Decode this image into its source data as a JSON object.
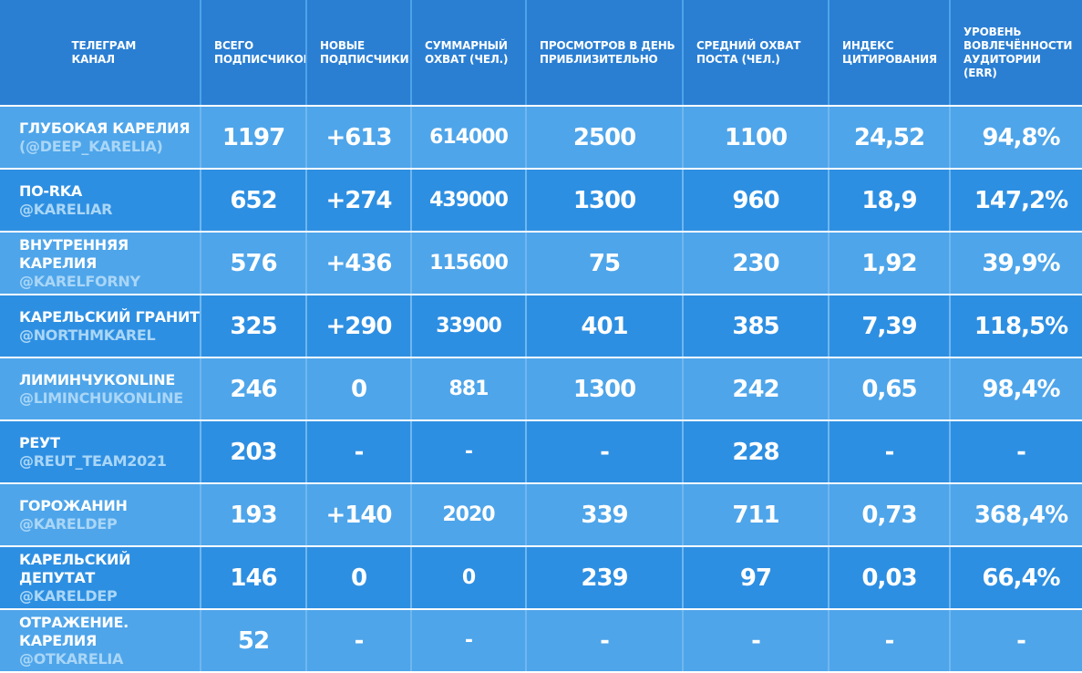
{
  "header": {
    "channel": "ТЕЛЕГРАМ\nКАНАЛ",
    "total_subscribers": "ВСЕГО\nПОДПИСЧИКОВ",
    "new_subscribers": "НОВЫЕ\nПОДПИСЧИКИ",
    "total_reach": "СУММАРНЫЙ\nОХВАТ (ЧЕЛ.)",
    "daily_views": "ПРОСМОТРОВ В ДЕНЬ\nПРИБЛИЗИТЕЛЬНО",
    "avg_post_reach": "СРЕДНИЙ ОХВАТ\nПОСТА (ЧЕЛ.)",
    "citation_index": "ИНДЕКС\nЦИТИРОВАНИЯ",
    "err": "УРОВЕНЬ\nВОВЛЕЧЁННОСТИ\nАУДИТОРИИ\n(ERR)"
  },
  "rows": [
    {
      "title": "ГЛУБОКАЯ КАРЕЛИЯ",
      "handle": "(@DEEP_KARELIA)",
      "total": "1197",
      "new": "+613",
      "reach": "614000",
      "views": "2500",
      "avg": "1100",
      "index": "24,52",
      "err": "94,8%"
    },
    {
      "title": "ПО-RKA",
      "handle": "@KARELIAR",
      "total": "652",
      "new": "+274",
      "reach": "439000",
      "views": "1300",
      "avg": "960",
      "index": "18,9",
      "err": "147,2%"
    },
    {
      "title": "ВНУТРЕННЯЯ КАРЕЛИЯ",
      "handle": "@KARELFORNY",
      "total": "576",
      "new": "+436",
      "reach": "115600",
      "views": "75",
      "avg": "230",
      "index": "1,92",
      "err": "39,9%"
    },
    {
      "title": "КАРЕЛЬСКИЙ ГРАНИТ",
      "handle": "@NORTHMKAREL",
      "total": "325",
      "new": "+290",
      "reach": "33900",
      "views": "401",
      "avg": "385",
      "index": "7,39",
      "err": "118,5%"
    },
    {
      "title": "ЛИМИНЧУКONLINE",
      "handle": "@LIMINCHUKONLINE",
      "total": "246",
      "new": "0",
      "reach": "881",
      "views": "1300",
      "avg": "242",
      "index": "0,65",
      "err": "98,4%"
    },
    {
      "title": "РЕУТ",
      "handle": "@REUT_TEAM2021",
      "total": "203",
      "new": "-",
      "reach": "-",
      "views": "-",
      "avg": "228",
      "index": "-",
      "err": "-"
    },
    {
      "title": "ГОРОЖАНИН",
      "handle": "@KARELDEP",
      "total": "193",
      "new": "+140",
      "reach": "2020",
      "views": "339",
      "avg": "711",
      "index": "0,73",
      "err": "368,4%"
    },
    {
      "title": "КАРЕЛЬСКИЙ ДЕПУТАТ",
      "handle": "@KARELDEP",
      "total": "146",
      "new": "0",
      "reach": "0",
      "views": "239",
      "avg": "97",
      "index": "0,03",
      "err": "66,4%"
    },
    {
      "title": "ОТРАЖЕНИЕ. КАРЕЛИЯ",
      "handle": "@OTKARELIA",
      "total": "52",
      "new": "-",
      "reach": "-",
      "views": "-",
      "avg": "-",
      "index": "-",
      "err": "-"
    }
  ],
  "colors": {
    "header_bg": "#2a7fd3",
    "row_light": "#4ea5ea",
    "row_dark": "#2d8fe2",
    "handle_text": "#a9d6f7"
  }
}
